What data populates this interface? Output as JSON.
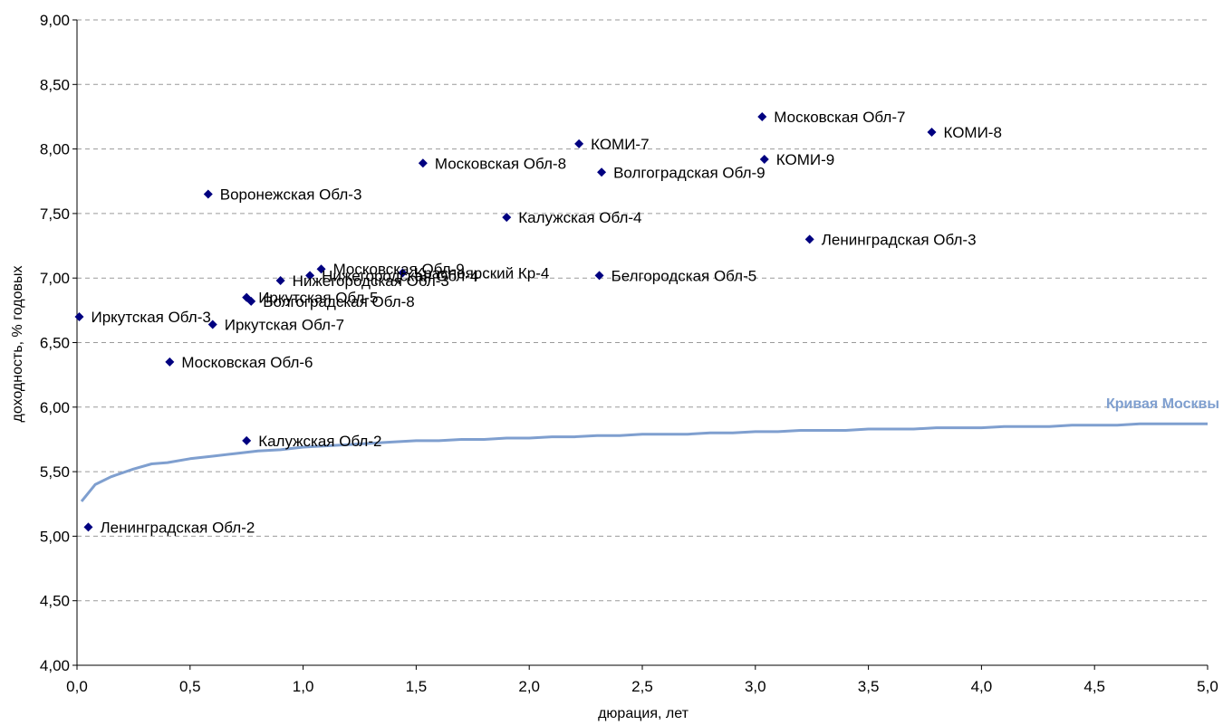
{
  "chart_data": {
    "type": "scatter",
    "xlabel": "дюрация, лет",
    "ylabel": "доходность, % годовых",
    "xlim": [
      0,
      5
    ],
    "ylim": [
      4,
      9
    ],
    "x_ticks": [
      "0,0",
      "0,5",
      "1,0",
      "1,5",
      "2,0",
      "2,5",
      "3,0",
      "3,5",
      "4,0",
      "4,5",
      "5,0"
    ],
    "y_ticks": [
      "4,00",
      "4,50",
      "5,00",
      "5,50",
      "6,00",
      "6,50",
      "7,00",
      "7,50",
      "8,00",
      "8,50",
      "9,00"
    ],
    "grid": "horizontal dashed",
    "colors": {
      "points": "#000080",
      "curve": "#7f9fcf"
    },
    "points": [
      {
        "label": "Ленинградская Обл-2",
        "x": 0.05,
        "y": 5.07
      },
      {
        "label": "Иркутская Обл-3",
        "x": 0.01,
        "y": 6.7
      },
      {
        "label": "Московская Обл-6",
        "x": 0.41,
        "y": 6.35
      },
      {
        "label": "Воронежская Обл-3",
        "x": 0.58,
        "y": 7.65
      },
      {
        "label": "Иркутская Обл-7",
        "x": 0.6,
        "y": 6.64
      },
      {
        "label": "Иркутская Обл-5",
        "x": 0.75,
        "y": 6.85
      },
      {
        "label": "Волгоградская Обл-8",
        "x": 0.77,
        "y": 6.82
      },
      {
        "label": "Калужская Обл-2",
        "x": 0.75,
        "y": 5.74
      },
      {
        "label": "Нижегородская Обл-3",
        "x": 0.9,
        "y": 6.98
      },
      {
        "label": "Нижегородская Обл-4",
        "x": 1.03,
        "y": 7.02
      },
      {
        "label": "Московская Обл-9",
        "x": 1.08,
        "y": 7.07
      },
      {
        "label": "Красноярский Кр-4",
        "x": 1.44,
        "y": 7.04
      },
      {
        "label": "Московская Обл-8",
        "x": 1.53,
        "y": 7.89
      },
      {
        "label": "Калужская Обл-4",
        "x": 1.9,
        "y": 7.47
      },
      {
        "label": "КОМИ-7",
        "x": 2.22,
        "y": 8.04
      },
      {
        "label": "Белгородская Обл-5",
        "x": 2.31,
        "y": 7.02
      },
      {
        "label": "Волгоградская Обл-9",
        "x": 2.32,
        "y": 7.82
      },
      {
        "label": "Московская Обл-7",
        "x": 3.03,
        "y": 8.25
      },
      {
        "label": "КОМИ-9",
        "x": 3.04,
        "y": 7.92
      },
      {
        "label": "Ленинградская Обл-3",
        "x": 3.24,
        "y": 7.3
      },
      {
        "label": "КОМИ-8",
        "x": 3.78,
        "y": 8.13
      }
    ],
    "curve": {
      "name": "Кривая Москвы",
      "x": [
        0.02,
        0.08,
        0.15,
        0.25,
        0.33,
        0.4,
        0.5,
        0.6,
        0.7,
        0.8,
        0.9,
        1.0,
        1.1,
        1.2,
        1.3,
        1.4,
        1.5,
        1.6,
        1.7,
        1.8,
        1.9,
        2.0,
        2.1,
        2.2,
        2.3,
        2.4,
        2.5,
        2.6,
        2.7,
        2.8,
        2.9,
        3.0,
        3.1,
        3.2,
        3.3,
        3.4,
        3.5,
        3.6,
        3.7,
        3.8,
        3.9,
        4.0,
        4.1,
        4.2,
        4.3,
        4.4,
        4.5,
        4.6,
        4.7,
        4.8,
        4.9,
        5.0
      ],
      "y": [
        5.27,
        5.4,
        5.46,
        5.52,
        5.56,
        5.57,
        5.6,
        5.62,
        5.64,
        5.66,
        5.67,
        5.69,
        5.7,
        5.71,
        5.72,
        5.73,
        5.74,
        5.74,
        5.75,
        5.75,
        5.76,
        5.76,
        5.77,
        5.77,
        5.78,
        5.78,
        5.79,
        5.79,
        5.79,
        5.8,
        5.8,
        5.81,
        5.81,
        5.82,
        5.82,
        5.82,
        5.83,
        5.83,
        5.83,
        5.84,
        5.84,
        5.84,
        5.85,
        5.85,
        5.85,
        5.86,
        5.86,
        5.86,
        5.87,
        5.87,
        5.87,
        5.87
      ]
    }
  }
}
